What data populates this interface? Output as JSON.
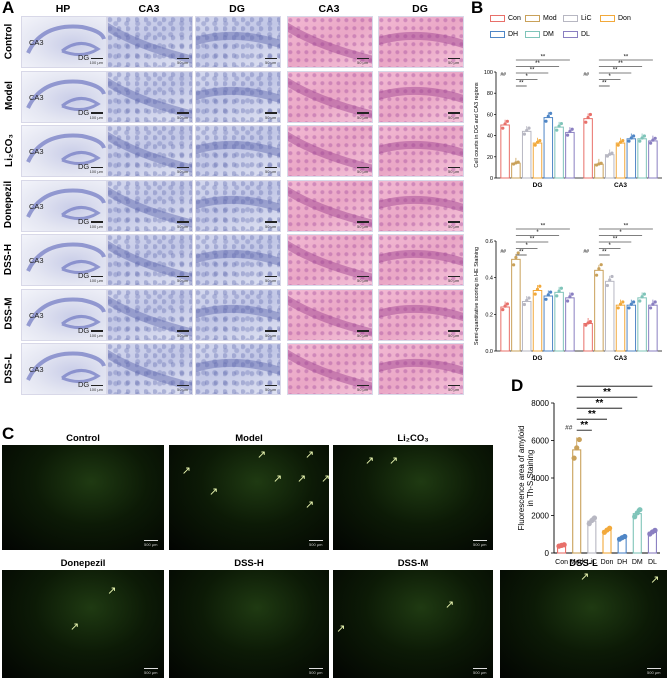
{
  "panel_A": {
    "letter": "A",
    "columns": [
      "HP",
      "CA3",
      "DG",
      "CA3",
      "DG"
    ],
    "rows": [
      "Control",
      "Model",
      "Li₂CO₃",
      "Donepezil",
      "DSS-H",
      "DSS-M",
      "DSS-L"
    ],
    "hp_labels": {
      "ca3": "CA3",
      "dg": "DG"
    },
    "scale_bars": {
      "hp": "100 μm",
      "zoom": "50 μm"
    }
  },
  "panel_B": {
    "letter": "B",
    "legend": [
      {
        "label": "Con",
        "color": "#e8706a"
      },
      {
        "label": "Mod",
        "color": "#c9a15a"
      },
      {
        "label": "LiC",
        "color": "#b7b7c2"
      },
      {
        "label": "Don",
        "color": "#f2a93b"
      },
      {
        "label": "DH",
        "color": "#4f86c6"
      },
      {
        "label": "DM",
        "color": "#7fc4b9"
      },
      {
        "label": "DL",
        "color": "#8a7fc1"
      }
    ],
    "sig_mark": "**",
    "hash_mark": "##",
    "star_mark": "*"
  },
  "chart_data": [
    {
      "type": "bar",
      "ylabel": "Cell counts in DG and CA3 regions",
      "ylim": [
        0,
        100
      ],
      "yticks": [
        "0",
        "20",
        "40",
        "60",
        "80",
        "100"
      ],
      "categories": [
        "DG",
        "CA3"
      ],
      "series": [
        {
          "name": "Con",
          "values": [
            50,
            56
          ]
        },
        {
          "name": "Mod",
          "values": [
            14,
            13
          ]
        },
        {
          "name": "LiC",
          "values": [
            44,
            22
          ]
        },
        {
          "name": "Don",
          "values": [
            33,
            33
          ]
        },
        {
          "name": "DH",
          "values": [
            57,
            37
          ]
        },
        {
          "name": "DM",
          "values": [
            48,
            37
          ]
        },
        {
          "name": "DL",
          "values": [
            43,
            35
          ]
        }
      ]
    },
    {
      "type": "bar",
      "ylabel": "Semi-quantitative scoring in HE Staining",
      "ylim": [
        0,
        0.6
      ],
      "yticks": [
        "0.0",
        "0.2",
        "0.4",
        "0.6"
      ],
      "categories": [
        "DG",
        "CA3"
      ],
      "series": [
        {
          "name": "Con",
          "values": [
            0.24,
            0.15
          ]
        },
        {
          "name": "Mod",
          "values": [
            0.5,
            0.44
          ]
        },
        {
          "name": "LiC",
          "values": [
            0.27,
            0.38
          ]
        },
        {
          "name": "Don",
          "values": [
            0.33,
            0.25
          ]
        },
        {
          "name": "DH",
          "values": [
            0.3,
            0.25
          ]
        },
        {
          "name": "DM",
          "values": [
            0.32,
            0.29
          ]
        },
        {
          "name": "DL",
          "values": [
            0.29,
            0.25
          ]
        }
      ]
    },
    {
      "type": "bar",
      "ylabel": "Fluorescence area of amyloid in Th-S Staining",
      "ylim": [
        0,
        8000
      ],
      "yticks": [
        "0",
        "2000",
        "4000",
        "6000",
        "8000"
      ],
      "categories": [
        "Con",
        "Mod",
        "LiC",
        "Don",
        "DH",
        "DM",
        "DL"
      ],
      "values": [
        400,
        5500,
        1700,
        1200,
        800,
        2100,
        1100
      ]
    }
  ],
  "panel_C": {
    "letter": "C",
    "titles": [
      "Control",
      "Model",
      "Li₂CO₃",
      "Donepezil",
      "DSS-H",
      "DSS-M",
      "DSS-L"
    ],
    "scale_bar": "500 μm"
  },
  "panel_D": {
    "letter": "D"
  }
}
